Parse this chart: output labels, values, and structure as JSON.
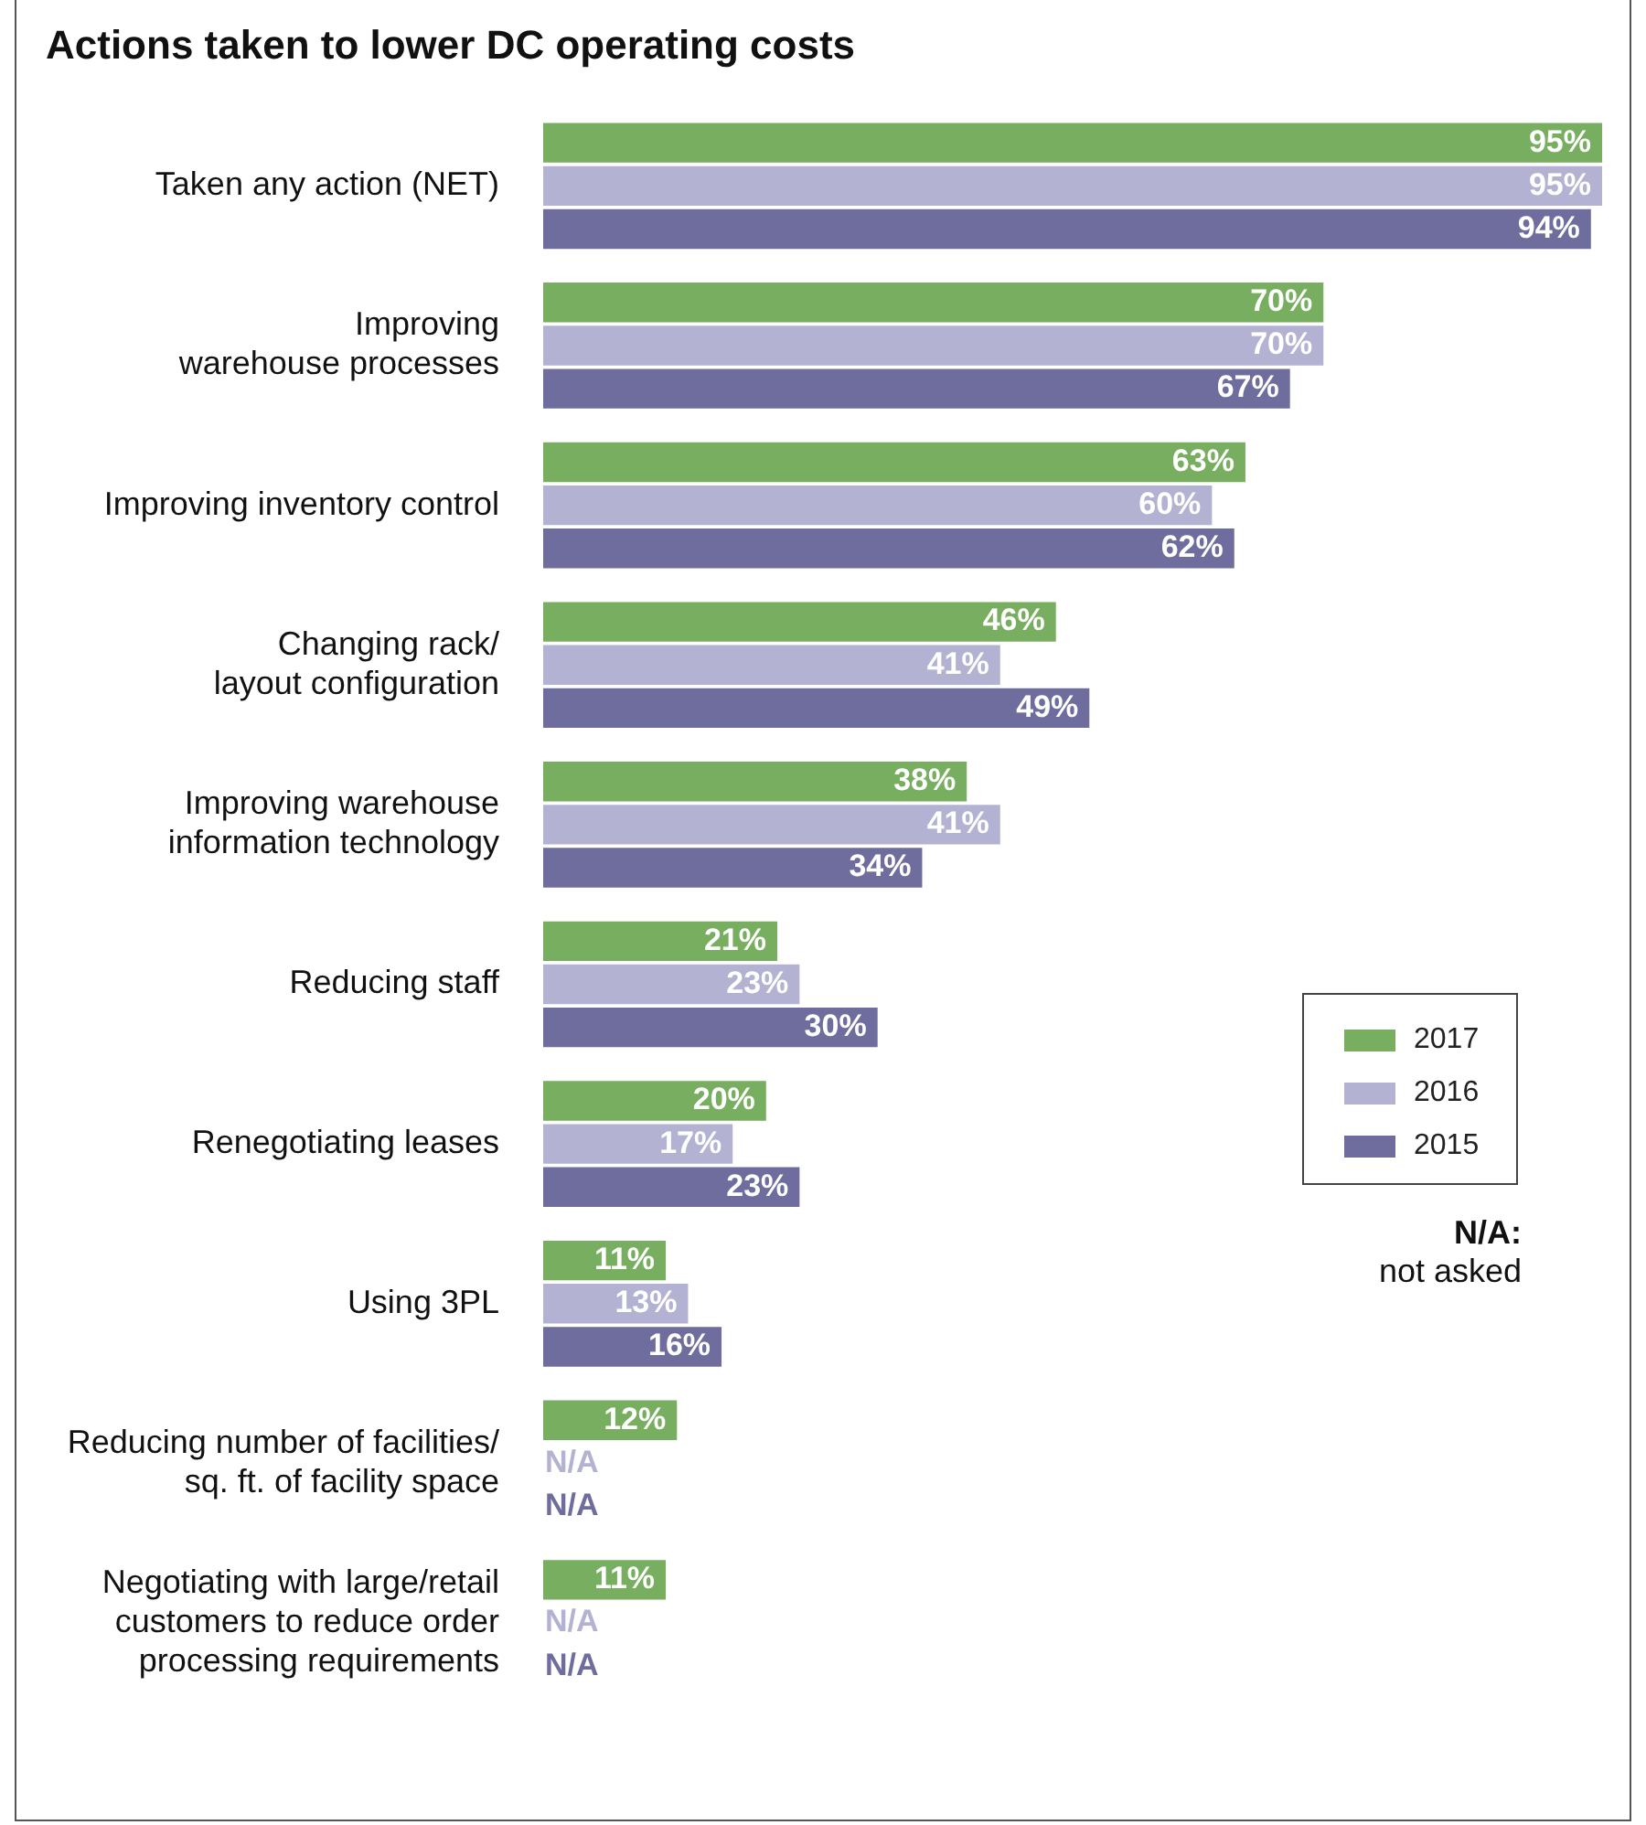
{
  "chart_data": {
    "type": "bar",
    "orientation": "horizontal",
    "title": "Actions taken to lower DC operating costs",
    "categories": [
      "Taken any action (NET)",
      "Improving\nwarehouse processes",
      "Improving inventory control",
      "Changing rack/\nlayout configuration",
      "Improving warehouse\ninformation technology",
      "Reducing staff",
      "Renegotiating leases",
      "Using 3PL",
      "Reducing number of facilities/\nsq. ft. of facility space",
      "Negotiating with large/retail\ncustomers to reduce order\nprocessing requirements"
    ],
    "series": [
      {
        "name": "2017",
        "color": "#77ae5f",
        "values": [
          95,
          70,
          63,
          46,
          38,
          21,
          20,
          11,
          12,
          11
        ],
        "value_labels": [
          "95%",
          "70%",
          "63%",
          "46%",
          "38%",
          "21%",
          "20%",
          "11%",
          "12%",
          "11%"
        ]
      },
      {
        "name": "2016",
        "color": "#b4b2d2",
        "values": [
          95,
          70,
          60,
          41,
          41,
          23,
          17,
          13,
          null,
          null
        ],
        "value_labels": [
          "95%",
          "70%",
          "60%",
          "41%",
          "41%",
          "23%",
          "17%",
          "13%",
          "N/A",
          "N/A"
        ]
      },
      {
        "name": "2015",
        "color": "#6f6d9d",
        "values": [
          94,
          67,
          62,
          49,
          34,
          30,
          23,
          16,
          null,
          null
        ],
        "value_labels": [
          "94%",
          "67%",
          "62%",
          "49%",
          "34%",
          "30%",
          "23%",
          "16%",
          "N/A",
          "N/A"
        ]
      }
    ],
    "legend": "right",
    "annotations": [
      "N/A: not asked"
    ]
  }
}
